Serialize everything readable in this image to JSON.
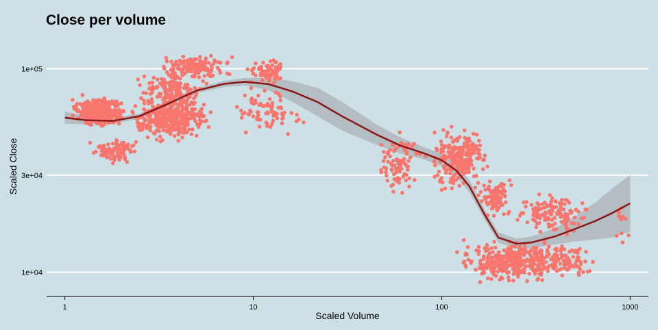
{
  "chart_data": {
    "type": "scatter",
    "title": "Close per volume",
    "xlabel": "Scaled Volume",
    "ylabel": "Scaled Close",
    "x_scale": "log10",
    "y_scale": "log10",
    "xlim": [
      0.8,
      1250
    ],
    "ylim": [
      7600,
      150000
    ],
    "x_ticks": [
      {
        "value": 1,
        "label": "1"
      },
      {
        "value": 10,
        "label": "10"
      },
      {
        "value": 100,
        "label": "100"
      },
      {
        "value": 1000,
        "label": "1000"
      }
    ],
    "y_ticks": [
      {
        "value": 10000,
        "label": "1e+04"
      },
      {
        "value": 30000,
        "label": "3e+04"
      },
      {
        "value": 100000,
        "label": "1e+05"
      }
    ],
    "grid": "horizontal major lines only",
    "colors": {
      "background": "#cde0e6",
      "points": "#f8766d",
      "smooth_line": "#8b1a1a",
      "confidence_band": "#a9b2b6",
      "grid": "#ffffff",
      "axis": "#000000"
    },
    "point_clusters": [
      {
        "x_range": [
          1,
          2.3
        ],
        "y_range": [
          50000,
          75000
        ],
        "count": 320
      },
      {
        "x_range": [
          1.3,
          2.6
        ],
        "y_range": [
          33000,
          47000
        ],
        "count": 90
      },
      {
        "x_range": [
          2,
          6.5
        ],
        "y_range": [
          42000,
          78000
        ],
        "count": 380
      },
      {
        "x_range": [
          2.2,
          6
        ],
        "y_range": [
          60000,
          100000
        ],
        "count": 140
      },
      {
        "x_range": [
          3,
          8
        ],
        "y_range": [
          85000,
          120000
        ],
        "count": 160
      },
      {
        "x_range": [
          9,
          16
        ],
        "y_range": [
          82000,
          112000
        ],
        "count": 80
      },
      {
        "x_range": [
          7,
          20
        ],
        "y_range": [
          45000,
          85000
        ],
        "count": 80
      },
      {
        "x_range": [
          45,
          80
        ],
        "y_range": [
          22000,
          55000
        ],
        "count": 90
      },
      {
        "x_range": [
          80,
          180
        ],
        "y_range": [
          24000,
          55000
        ],
        "count": 240
      },
      {
        "x_range": [
          150,
          250
        ],
        "y_range": [
          18000,
          30000
        ],
        "count": 90
      },
      {
        "x_range": [
          110,
          500
        ],
        "y_range": [
          8600,
          15000
        ],
        "count": 360
      },
      {
        "x_range": [
          220,
          700
        ],
        "y_range": [
          15000,
          25000
        ],
        "count": 140
      },
      {
        "x_range": [
          300,
          700
        ],
        "y_range": [
          9000,
          14000
        ],
        "count": 80
      },
      {
        "x_range": [
          800,
          1000
        ],
        "y_range": [
          12000,
          26000
        ],
        "count": 12
      }
    ],
    "smooth_line": {
      "x": [
        1,
        1.3,
        1.8,
        2.5,
        3.5,
        5,
        7,
        9,
        12,
        16,
        22,
        30,
        45,
        60,
        80,
        100,
        120,
        140,
        170,
        200,
        250,
        300,
        400,
        500,
        650,
        800,
        1000
      ],
      "y": [
        57500,
        55800,
        55400,
        58500,
        67000,
        78000,
        84200,
        86300,
        84000,
        77500,
        68500,
        58000,
        47500,
        42000,
        38500,
        35500,
        31500,
        26500,
        19000,
        14800,
        13800,
        14000,
        15000,
        16200,
        17800,
        19500,
        21800
      ],
      "ci_halfwidth": [
        0.03,
        0.02,
        0.015,
        0.012,
        0.012,
        0.012,
        0.015,
        0.018,
        0.03,
        0.05,
        0.07,
        0.07,
        0.05,
        0.04,
        0.03,
        0.03,
        0.03,
        0.03,
        0.025,
        0.025,
        0.025,
        0.03,
        0.04,
        0.06,
        0.09,
        0.12,
        0.14
      ]
    }
  }
}
